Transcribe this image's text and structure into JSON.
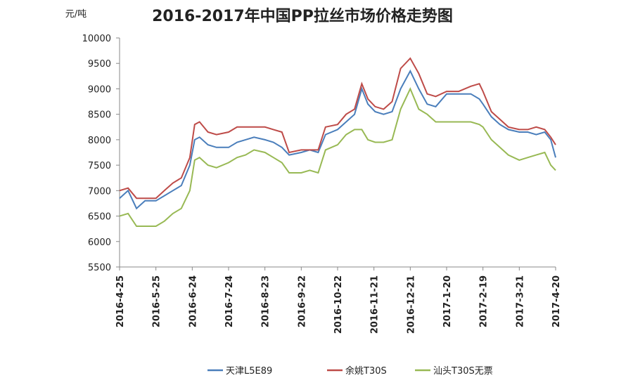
{
  "chart_data": {
    "type": "line",
    "title": "2016-2017年中国PP拉丝市场价格走势图",
    "y_label": "元/吨",
    "x": [
      "2016-4-25",
      "2016-5-2",
      "2016-5-9",
      "2016-5-16",
      "2016-5-25",
      "2016-6-1",
      "2016-6-8",
      "2016-6-15",
      "2016-6-22",
      "2016-6-26",
      "2016-6-30",
      "2016-7-7",
      "2016-7-14",
      "2016-7-24",
      "2016-7-31",
      "2016-8-7",
      "2016-8-14",
      "2016-8-23",
      "2016-8-30",
      "2016-9-6",
      "2016-9-12",
      "2016-9-22",
      "2016-9-29",
      "2016-10-6",
      "2016-10-12",
      "2016-10-22",
      "2016-10-29",
      "2016-11-5",
      "2016-11-11",
      "2016-11-16",
      "2016-11-22",
      "2016-11-29",
      "2016-12-6",
      "2016-12-13",
      "2016-12-21",
      "2016-12-28",
      "2017-1-4",
      "2017-1-11",
      "2017-1-20",
      "2017-1-30",
      "2017-2-9",
      "2017-2-16",
      "2017-2-19",
      "2017-2-26",
      "2017-3-5",
      "2017-3-12",
      "2017-3-21",
      "2017-3-28",
      "2017-4-4",
      "2017-4-11",
      "2017-4-16",
      "2017-4-20"
    ],
    "series": [
      {
        "name": "天津L5E89",
        "color": "#4a7ebb",
        "values": [
          6850,
          7000,
          6650,
          6800,
          6800,
          6900,
          7000,
          7100,
          7500,
          8000,
          8050,
          7900,
          7850,
          7850,
          7950,
          8000,
          8050,
          8000,
          7950,
          7850,
          7700,
          7750,
          7800,
          7750,
          8100,
          8200,
          8350,
          8500,
          9000,
          8700,
          8550,
          8500,
          8550,
          9000,
          9350,
          9000,
          8700,
          8650,
          8900,
          8900,
          8900,
          8800,
          8700,
          8450,
          8300,
          8200,
          8150,
          8150,
          8100,
          8150,
          8000,
          7650
        ]
      },
      {
        "name": "余姚T30S",
        "color": "#be4b48",
        "values": [
          7000,
          7050,
          6850,
          6850,
          6850,
          7000,
          7150,
          7250,
          7650,
          8300,
          8350,
          8150,
          8100,
          8150,
          8250,
          8250,
          8250,
          8250,
          8200,
          8150,
          7750,
          7800,
          7800,
          7800,
          8250,
          8300,
          8500,
          8600,
          9100,
          8800,
          8650,
          8600,
          8750,
          9400,
          9600,
          9300,
          8900,
          8850,
          8950,
          8950,
          9050,
          9100,
          8950,
          8550,
          8400,
          8250,
          8200,
          8200,
          8250,
          8200,
          8050,
          7900
        ]
      },
      {
        "name": "汕头T30S无票",
        "color": "#98b954",
        "values": [
          6500,
          6550,
          6300,
          6300,
          6300,
          6400,
          6550,
          6650,
          7000,
          7600,
          7650,
          7500,
          7450,
          7550,
          7650,
          7700,
          7800,
          7750,
          7650,
          7550,
          7350,
          7350,
          7400,
          7350,
          7800,
          7900,
          8100,
          8200,
          8200,
          8000,
          7950,
          7950,
          8000,
          8600,
          9000,
          8600,
          8500,
          8350,
          8350,
          8350,
          8350,
          8300,
          8250,
          8000,
          7850,
          7700,
          7600,
          7650,
          7700,
          7750,
          7500,
          7400
        ]
      }
    ],
    "xlim": [
      "2016-4-25",
      "2017-4-20"
    ],
    "xticks": [
      "2016-4-25",
      "2016-5-25",
      "2016-6-24",
      "2016-7-24",
      "2016-8-23",
      "2016-9-22",
      "2016-10-22",
      "2016-11-21",
      "2016-12-21",
      "2017-1-20",
      "2017-2-19",
      "2017-3-21",
      "2017-4-20"
    ],
    "ylim": [
      5500,
      10000
    ],
    "yticks": [
      5500,
      6000,
      6500,
      7000,
      7500,
      8000,
      8500,
      9000,
      9500,
      10000
    ],
    "grid": false,
    "legend": "bottom"
  }
}
